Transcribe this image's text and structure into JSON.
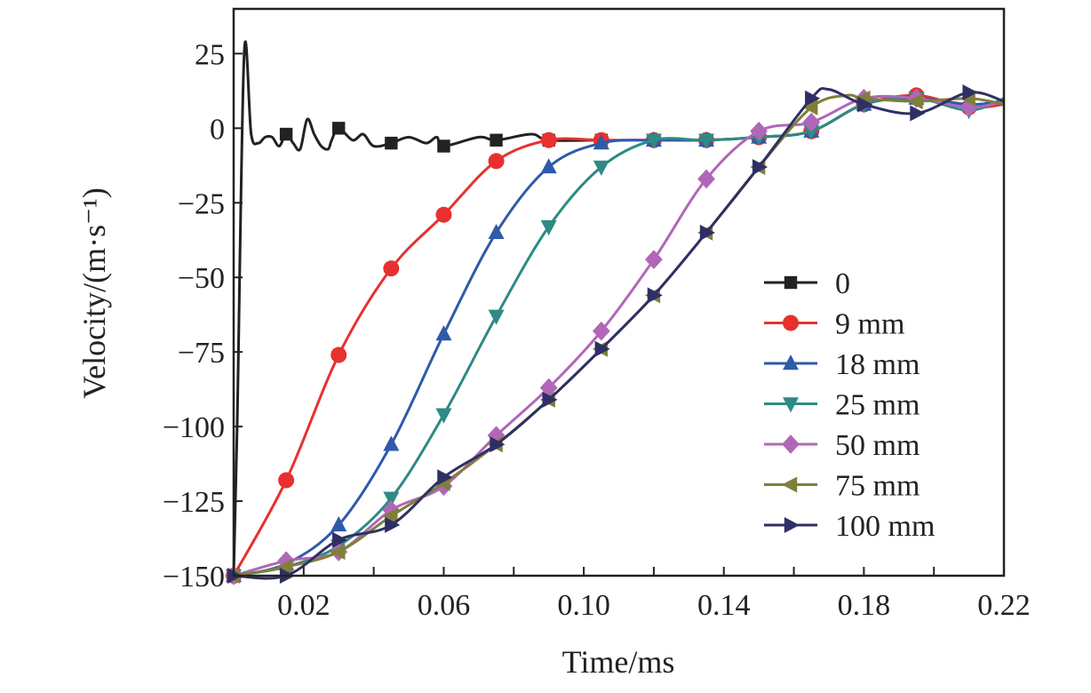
{
  "chart_data": {
    "type": "line",
    "xlabel": "Time/ms",
    "ylabel": "Velocity/(m·s⁻¹)",
    "xlim": [
      0,
      0.22
    ],
    "ylim": [
      -150,
      40
    ],
    "xticks": [
      0.02,
      0.06,
      0.1,
      0.14,
      0.18,
      0.22
    ],
    "xtick_labels": [
      "0.02",
      "0.06",
      "0.10",
      "0.14",
      "0.18",
      "0.22"
    ],
    "yticks": [
      25,
      0,
      -25,
      -50,
      -75,
      -100,
      -125,
      -150
    ],
    "ytick_labels": [
      "25",
      "0",
      "−25",
      "−50",
      "−75",
      "−100",
      "−125",
      "−150"
    ],
    "grid": false,
    "legend_position": "right",
    "series": [
      {
        "name": "0",
        "color": "#222222",
        "marker": "square",
        "x": [
          0,
          0.001,
          0.003,
          0.005,
          0.007,
          0.009,
          0.011,
          0.013,
          0.015,
          0.017,
          0.019,
          0.021,
          0.023,
          0.025,
          0.027,
          0.028,
          0.03,
          0.034,
          0.037,
          0.04,
          0.045,
          0.05,
          0.055,
          0.058,
          0.06,
          0.07,
          0.075,
          0.085,
          0.09,
          0.105
        ],
        "y": [
          -150,
          -100,
          25,
          -2,
          -5,
          -3,
          -3,
          -6,
          -2,
          -5,
          -7,
          3,
          -2,
          -6,
          -7,
          -4,
          0,
          -4,
          -2,
          -6,
          -5,
          -3,
          -5,
          -3,
          -6,
          -3,
          -4,
          -2,
          -4,
          -4
        ]
      },
      {
        "name": "9 mm",
        "color": "#e8312f",
        "marker": "circle",
        "x": [
          0,
          0.015,
          0.03,
          0.045,
          0.06,
          0.075,
          0.09,
          0.105,
          0.12,
          0.135,
          0.15,
          0.165,
          0.18,
          0.195,
          0.21,
          0.22
        ],
        "y": [
          -150,
          -118,
          -76,
          -47,
          -29,
          -11,
          -4,
          -4,
          -4,
          -4,
          -3,
          -1,
          8,
          11,
          7,
          8
        ]
      },
      {
        "name": "18 mm",
        "color": "#2f5aa8",
        "marker": "triangle-up",
        "x": [
          0,
          0.015,
          0.03,
          0.045,
          0.06,
          0.075,
          0.09,
          0.105,
          0.12,
          0.135,
          0.15,
          0.165,
          0.18,
          0.195,
          0.21,
          0.22
        ],
        "y": [
          -150,
          -146,
          -133,
          -106,
          -69,
          -35,
          -13,
          -5,
          -4,
          -4,
          -3,
          -1,
          8,
          10,
          8,
          9
        ]
      },
      {
        "name": "25 mm",
        "color": "#2e8a85",
        "marker": "triangle-down",
        "x": [
          0,
          0.015,
          0.03,
          0.045,
          0.06,
          0.075,
          0.09,
          0.105,
          0.12,
          0.135,
          0.15,
          0.165,
          0.18,
          0.195,
          0.21,
          0.22
        ],
        "y": [
          -150,
          -147,
          -140,
          -124,
          -96,
          -63,
          -33,
          -13,
          -4,
          -4,
          -3,
          -1,
          8,
          10,
          6,
          10
        ]
      },
      {
        "name": "50 mm",
        "color": "#b067b8",
        "marker": "diamond",
        "x": [
          0,
          0.015,
          0.03,
          0.045,
          0.06,
          0.075,
          0.09,
          0.105,
          0.12,
          0.135,
          0.15,
          0.165,
          0.18,
          0.195,
          0.21,
          0.22
        ],
        "y": [
          -150,
          -145,
          -142,
          -128,
          -120,
          -103,
          -87,
          -68,
          -44,
          -17,
          -1,
          2,
          10,
          10,
          7,
          9
        ]
      },
      {
        "name": "75 mm",
        "color": "#7f7f3a",
        "marker": "triangle-left",
        "x": [
          0,
          0.015,
          0.03,
          0.045,
          0.06,
          0.075,
          0.09,
          0.105,
          0.12,
          0.135,
          0.15,
          0.165,
          0.175,
          0.18,
          0.195,
          0.21,
          0.22
        ],
        "y": [
          -150,
          -147,
          -142,
          -130,
          -119,
          -106,
          -91,
          -74,
          -56,
          -35,
          -13,
          7,
          11,
          10,
          9,
          10,
          8
        ]
      },
      {
        "name": "100 mm",
        "color": "#2f2f66",
        "marker": "triangle-right",
        "x": [
          0,
          0.015,
          0.03,
          0.045,
          0.06,
          0.075,
          0.09,
          0.105,
          0.12,
          0.135,
          0.15,
          0.165,
          0.17,
          0.18,
          0.195,
          0.21,
          0.22
        ],
        "y": [
          -150,
          -150,
          -138,
          -133,
          -117,
          -106,
          -91,
          -74,
          -56,
          -35,
          -13,
          10,
          13,
          8,
          5,
          12,
          9
        ]
      }
    ]
  }
}
